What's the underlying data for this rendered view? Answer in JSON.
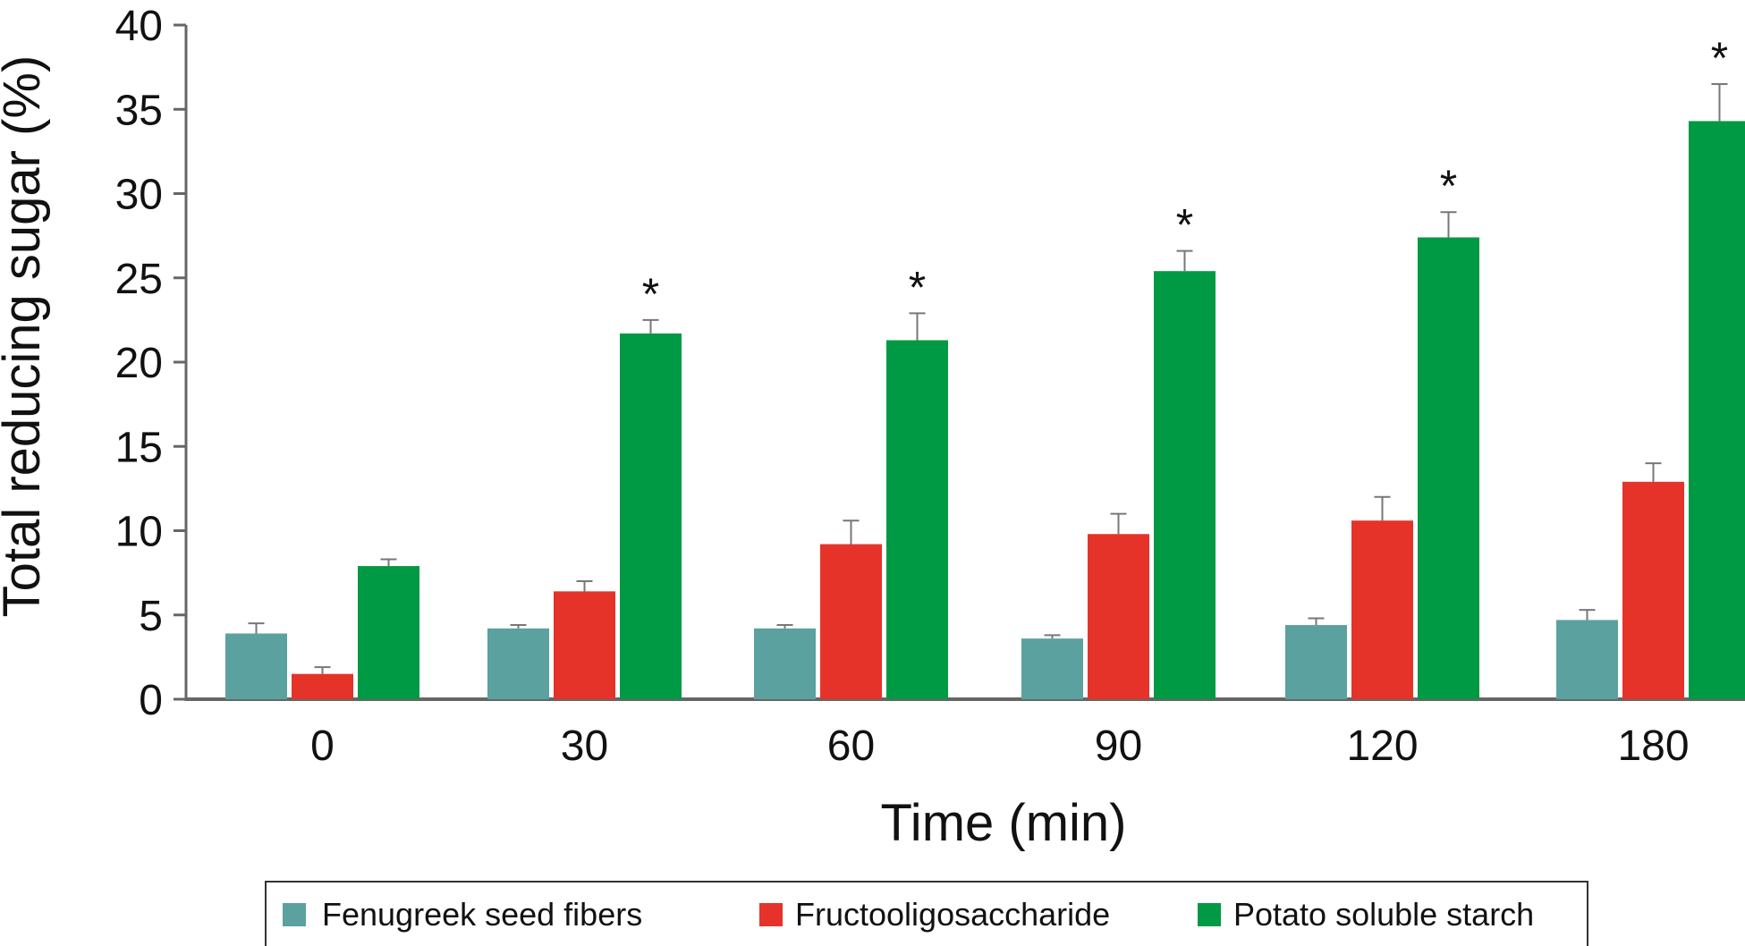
{
  "chart_data": {
    "type": "bar",
    "xlabel": "Time (min)",
    "ylabel": "Total reducing sugar (%)",
    "categories": [
      "0",
      "30",
      "60",
      "90",
      "120",
      "180"
    ],
    "ylim": [
      0,
      40
    ],
    "yticks": [
      0,
      5,
      10,
      15,
      20,
      25,
      30,
      35,
      40
    ],
    "grid": false,
    "legend_position": "bottom",
    "series": [
      {
        "name": "Fenugreek seed fibers",
        "color": "#5ba19f",
        "values": [
          3.9,
          4.2,
          4.2,
          3.6,
          4.4,
          4.7
        ],
        "errors": [
          0.6,
          0.2,
          0.2,
          0.2,
          0.4,
          0.6
        ],
        "significant": [
          false,
          false,
          false,
          false,
          false,
          false
        ]
      },
      {
        "name": "Fructooligosaccharide",
        "color": "#e5332a",
        "values": [
          1.5,
          6.4,
          9.2,
          9.8,
          10.6,
          12.9
        ],
        "errors": [
          0.4,
          0.6,
          1.4,
          1.2,
          1.4,
          1.1
        ],
        "significant": [
          false,
          false,
          false,
          false,
          false,
          false
        ]
      },
      {
        "name": "Potato soluble starch",
        "color": "#009944",
        "values": [
          7.9,
          21.7,
          21.3,
          25.4,
          27.4,
          34.3
        ],
        "errors": [
          0.4,
          0.8,
          1.6,
          1.2,
          1.5,
          2.2
        ],
        "significant": [
          false,
          true,
          true,
          true,
          true,
          true
        ]
      }
    ],
    "significance_marker": "*"
  }
}
